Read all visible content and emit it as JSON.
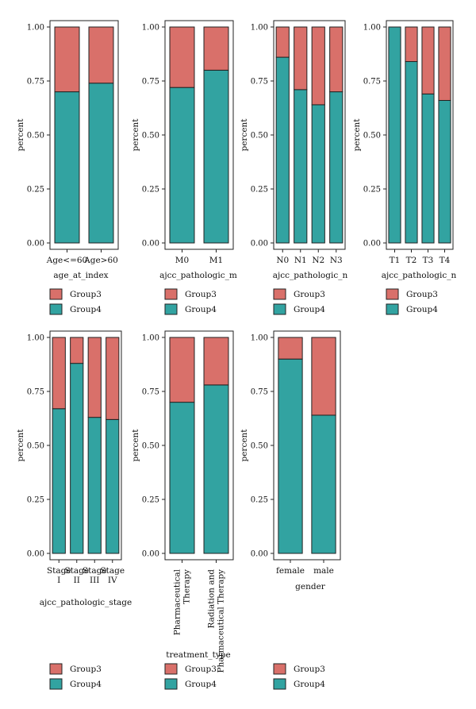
{
  "colors": {
    "Group3": "#d9706a",
    "Group4": "#32a3a1",
    "outline": "#222222"
  },
  "legend": [
    "Group3",
    "Group4"
  ],
  "y_ticks": [
    "0.00",
    "0.25",
    "0.50",
    "0.75",
    "1.00"
  ],
  "chart_data": [
    {
      "type": "bar",
      "stacked": true,
      "ylabel": "percent",
      "xlabel": "age_at_index",
      "ylim": [
        0,
        1
      ],
      "categories": [
        [
          "Age<=60"
        ],
        [
          "Age>60"
        ]
      ],
      "series": [
        {
          "name": "Group4",
          "values": [
            0.7,
            0.74
          ]
        },
        {
          "name": "Group3",
          "values": [
            0.3,
            0.26
          ]
        }
      ],
      "legend_position": "bottom"
    },
    {
      "type": "bar",
      "stacked": true,
      "ylabel": "percent",
      "xlabel": "ajcc_pathologic_m",
      "ylim": [
        0,
        1
      ],
      "categories": [
        [
          "M0"
        ],
        [
          "M1"
        ]
      ],
      "series": [
        {
          "name": "Group4",
          "values": [
            0.72,
            0.8
          ]
        },
        {
          "name": "Group3",
          "values": [
            0.28,
            0.2
          ]
        }
      ],
      "legend_position": "bottom"
    },
    {
      "type": "bar",
      "stacked": true,
      "ylabel": "percent",
      "xlabel": "ajcc_pathologic_n",
      "ylim": [
        0,
        1
      ],
      "categories": [
        [
          "N0"
        ],
        [
          "N1"
        ],
        [
          "N2"
        ],
        [
          "N3"
        ]
      ],
      "series": [
        {
          "name": "Group4",
          "values": [
            0.86,
            0.71,
            0.64,
            0.7
          ]
        },
        {
          "name": "Group3",
          "values": [
            0.14,
            0.29,
            0.36,
            0.3
          ]
        }
      ],
      "legend_position": "bottom"
    },
    {
      "type": "bar",
      "stacked": true,
      "ylabel": "percent",
      "xlabel": "ajcc_pathologic_n",
      "ylim": [
        0,
        1
      ],
      "categories": [
        [
          "T1"
        ],
        [
          "T2"
        ],
        [
          "T3"
        ],
        [
          "T4"
        ]
      ],
      "series": [
        {
          "name": "Group4",
          "values": [
            1.0,
            0.84,
            0.69,
            0.66
          ]
        },
        {
          "name": "Group3",
          "values": [
            0.0,
            0.16,
            0.31,
            0.34
          ]
        }
      ],
      "legend_position": "bottom"
    },
    {
      "type": "bar",
      "stacked": true,
      "ylabel": "percent",
      "xlabel": "ajcc_pathologic_stage",
      "ylim": [
        0,
        1
      ],
      "categories": [
        [
          "Stage",
          "I"
        ],
        [
          "Stage",
          "II"
        ],
        [
          "Stage",
          "III"
        ],
        [
          "Stage",
          "IV"
        ]
      ],
      "series": [
        {
          "name": "Group4",
          "values": [
            0.67,
            0.88,
            0.63,
            0.62
          ]
        },
        {
          "name": "Group3",
          "values": [
            0.33,
            0.12,
            0.37,
            0.38
          ]
        }
      ],
      "legend_position": "bottom"
    },
    {
      "type": "bar",
      "stacked": true,
      "ylabel": "percent",
      "xlabel": "treatment_type",
      "ylim": [
        0,
        1
      ],
      "categories": [
        [
          "Pharmaceutical",
          "Therapy"
        ],
        [
          "Radiation and",
          "Pharmaceutical Therapy"
        ]
      ],
      "series": [
        {
          "name": "Group4",
          "values": [
            0.7,
            0.78
          ]
        },
        {
          "name": "Group3",
          "values": [
            0.3,
            0.22
          ]
        }
      ],
      "legend_position": "bottom"
    },
    {
      "type": "bar",
      "stacked": true,
      "ylabel": "percent",
      "xlabel": "gender",
      "ylim": [
        0,
        1
      ],
      "categories": [
        [
          "female"
        ],
        [
          "male"
        ]
      ],
      "series": [
        {
          "name": "Group4",
          "values": [
            0.9,
            0.64
          ]
        },
        {
          "name": "Group3",
          "values": [
            0.1,
            0.36
          ]
        }
      ],
      "legend_position": "bottom"
    }
  ]
}
